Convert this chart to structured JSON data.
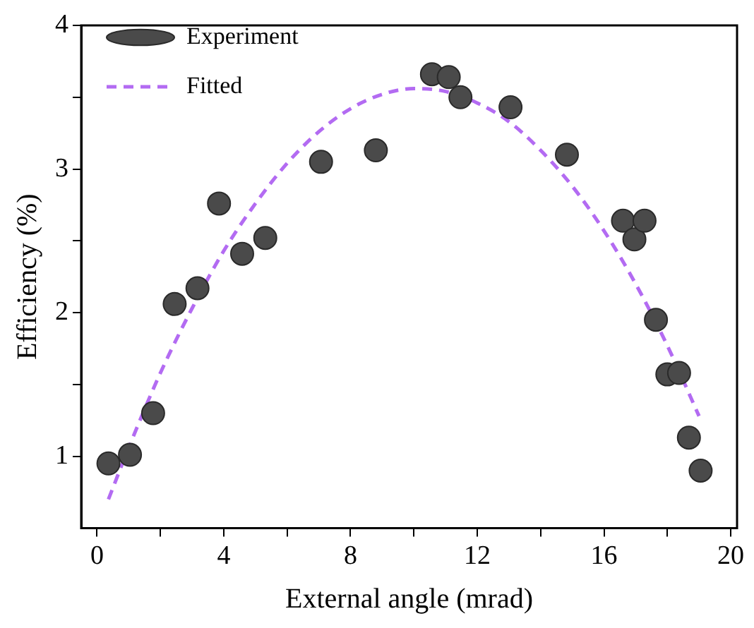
{
  "chart_data": {
    "type": "scatter",
    "xlabel": "External angle (mrad)",
    "ylabel": "Efficiency (%)",
    "xlim": [
      -0.5,
      20.2
    ],
    "ylim": [
      0.5,
      4
    ],
    "xticks": [
      0,
      {
        "value": 2,
        "label": null
      },
      4,
      {
        "value": 6,
        "label": null
      },
      8,
      {
        "value": 10,
        "label": null
      },
      12,
      {
        "value": 14,
        "label": null
      },
      16,
      {
        "value": 18,
        "label": null
      },
      20
    ],
    "yticks": [
      1,
      {
        "value": 1.5,
        "label": null
      },
      2,
      {
        "value": 2.5,
        "label": null
      },
      3,
      {
        "value": 3.5,
        "label": null
      },
      4
    ],
    "grid": false,
    "legend": "top left",
    "marker": "circle",
    "series": [
      {
        "name": "Experiment",
        "type": "scatter",
        "color": "#4a4a4a",
        "x": [
          0.36,
          1.04,
          1.77,
          2.45,
          3.17,
          3.85,
          4.58,
          5.31,
          7.07,
          8.8,
          10.57,
          11.1,
          11.47,
          13.05,
          14.83,
          16.6,
          16.96,
          17.28,
          17.64,
          18.0,
          18.37,
          18.68,
          19.05
        ],
        "values": [
          0.95,
          1.01,
          1.3,
          2.06,
          2.17,
          2.76,
          2.41,
          2.52,
          3.05,
          3.13,
          3.66,
          3.64,
          3.5,
          3.43,
          3.1,
          2.64,
          2.51,
          2.64,
          1.95,
          1.57,
          1.58,
          1.13,
          0.9
        ]
      },
      {
        "name": "Fitted",
        "type": "line",
        "color": "#b36bf2",
        "line_style": "dashed",
        "marker": "none",
        "x": [
          0.36,
          1,
          2,
          3,
          4,
          5,
          6,
          7,
          8,
          9,
          10,
          11,
          12,
          13,
          14,
          15,
          16,
          17,
          18,
          19
        ],
        "values": [
          0.7,
          1.06,
          1.58,
          2.03,
          2.43,
          2.76,
          3.04,
          3.26,
          3.42,
          3.52,
          3.56,
          3.54,
          3.46,
          3.33,
          3.13,
          2.88,
          2.57,
          2.2,
          1.77,
          1.28
        ]
      }
    ]
  }
}
